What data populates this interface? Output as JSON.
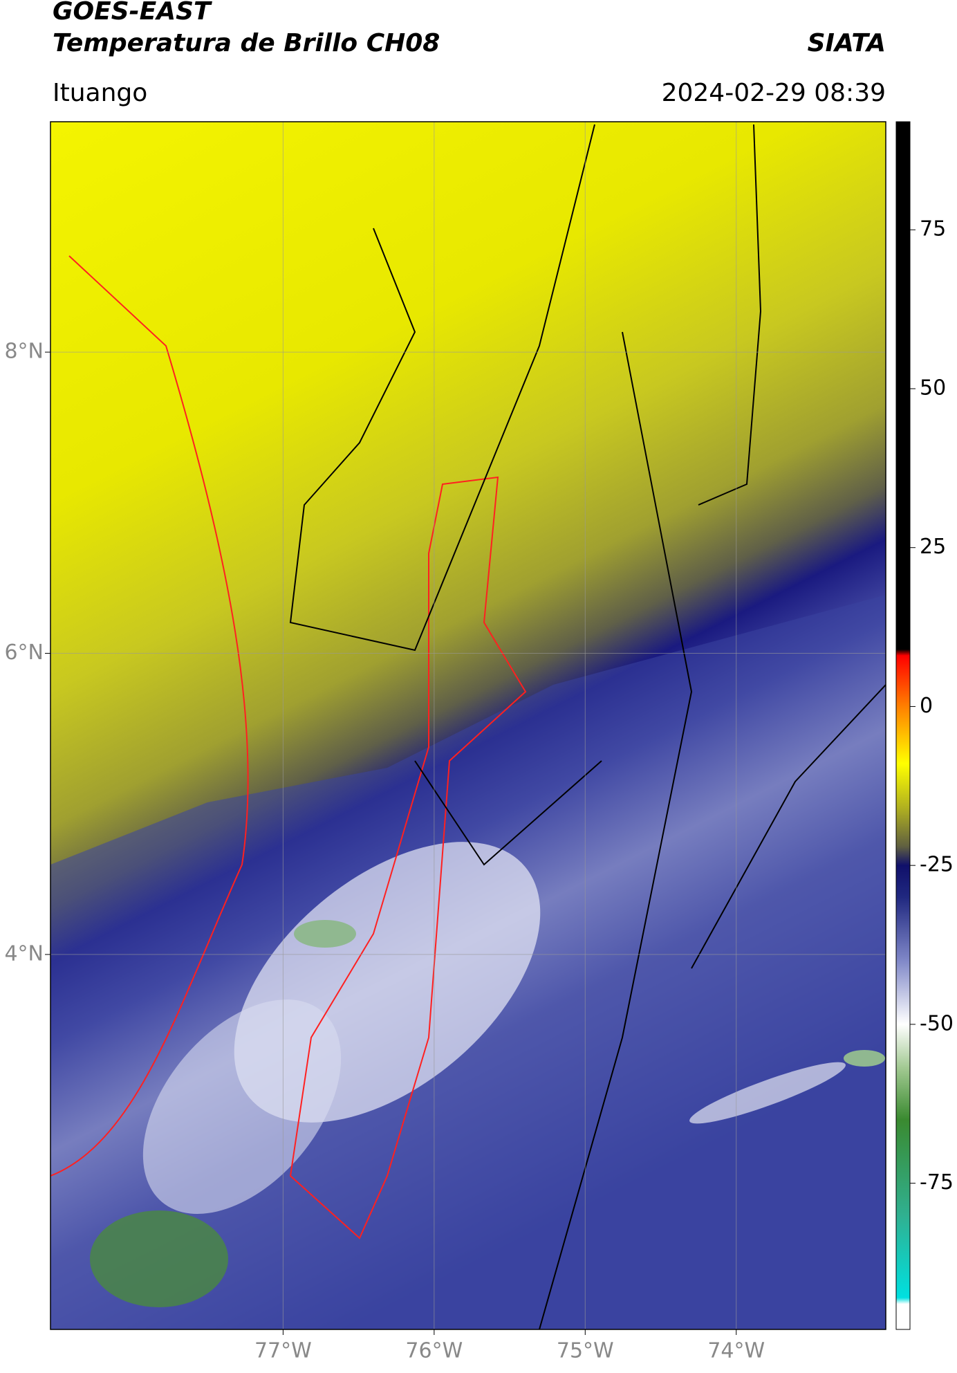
{
  "header": {
    "satellite": "GOES-EAST",
    "product": "Temperatura de Brillo CH08",
    "agency": "SIATA",
    "region": "Ituango",
    "timestamp": "2024-02-29 08:39"
  },
  "map": {
    "xlim": [
      -78.54,
      -73.01
    ],
    "ylim": [
      1.51,
      9.53
    ],
    "xticks": [
      {
        "value": -77,
        "label": "77°W"
      },
      {
        "value": -76,
        "label": "76°W"
      },
      {
        "value": -75,
        "label": "75°W"
      },
      {
        "value": -74,
        "label": "74°W"
      }
    ],
    "yticks": [
      {
        "value": 4,
        "label": "4°N"
      },
      {
        "value": 6,
        "label": "6°N"
      },
      {
        "value": 8,
        "label": "8°N"
      }
    ],
    "grid": true
  },
  "colorbar": {
    "lim": [
      -98,
      92
    ],
    "ticks": [
      -75,
      -50,
      -25,
      0,
      25,
      50,
      75
    ],
    "stops": [
      {
        "value": -98,
        "color": "#ffffff"
      },
      {
        "value": -94,
        "color": "#ffffff"
      },
      {
        "value": -93,
        "color": "#00e0e0"
      },
      {
        "value": -80,
        "color": "#30b090"
      },
      {
        "value": -65,
        "color": "#3a8a30"
      },
      {
        "value": -57,
        "color": "#a0c890"
      },
      {
        "value": -50,
        "color": "#ffffff"
      },
      {
        "value": -40,
        "color": "#8088c8"
      },
      {
        "value": -30,
        "color": "#202880"
      },
      {
        "value": -25,
        "color": "#10106a"
      },
      {
        "value": -22,
        "color": "#606040"
      },
      {
        "value": -16,
        "color": "#b0b020"
      },
      {
        "value": -9,
        "color": "#ffff00"
      },
      {
        "value": 0,
        "color": "#ff8000"
      },
      {
        "value": 8,
        "color": "#ff0000"
      },
      {
        "value": 9,
        "color": "#000000"
      },
      {
        "value": 92,
        "color": "#000000"
      }
    ]
  }
}
